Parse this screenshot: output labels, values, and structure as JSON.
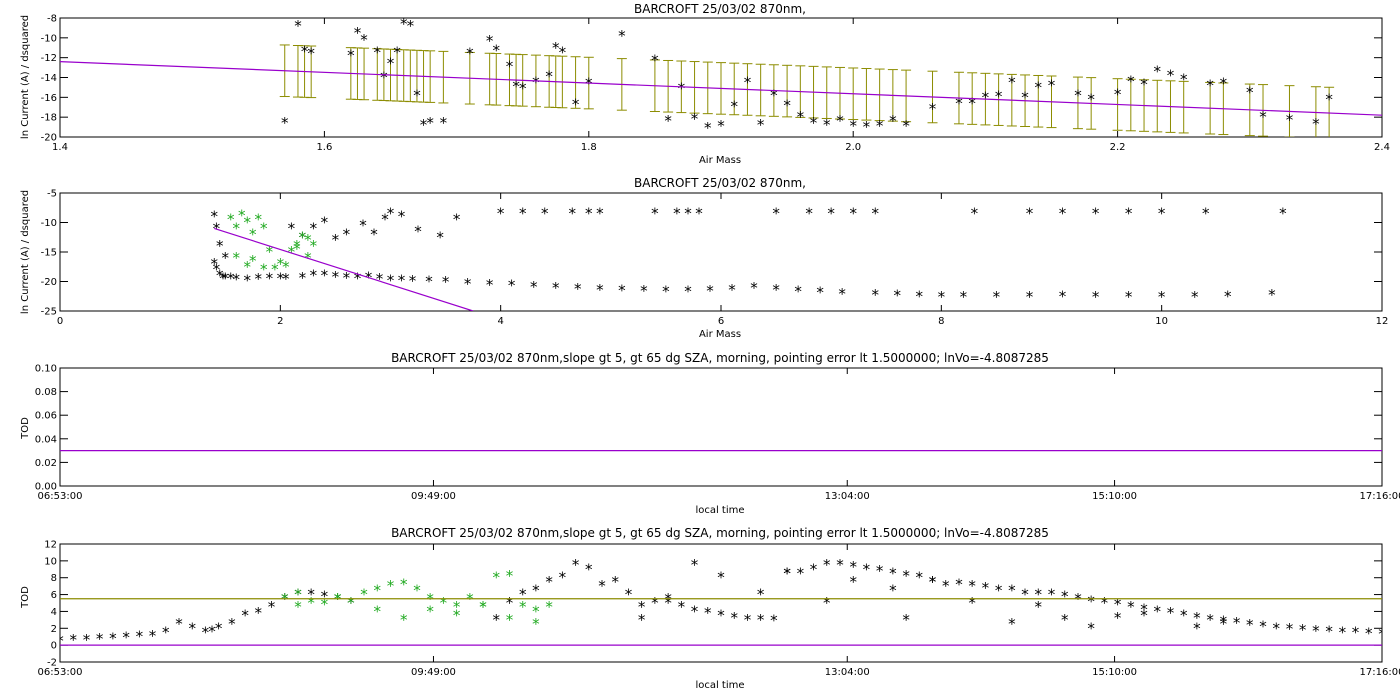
{
  "chart_data": [
    {
      "type": "scatter",
      "title": "BARCROFT 25/03/02 870nm,",
      "xlabel": "Air Mass",
      "ylabel": "ln Current (A) / dsquared",
      "xlim": [
        1.4,
        2.4
      ],
      "ylim": [
        -20,
        -8
      ],
      "xticks": [
        "1.4",
        "1.6",
        "1.8",
        "2.0",
        "2.2",
        "2.4"
      ],
      "yticks": [
        "-20",
        "-18",
        "-16",
        "-14",
        "-12",
        "-10",
        "-8"
      ],
      "colors": {
        "points": "#000000",
        "fit": "#9900cc",
        "errorbars": "#8c8c00"
      },
      "series": [
        {
          "kind": "points",
          "x": [
            1.57,
            1.58,
            1.585,
            1.59,
            1.62,
            1.625,
            1.63,
            1.64,
            1.645,
            1.65,
            1.655,
            1.66,
            1.665,
            1.67,
            1.675,
            1.68,
            1.69,
            1.71,
            1.725,
            1.73,
            1.74,
            1.745,
            1.75,
            1.76,
            1.77,
            1.775,
            1.78,
            1.79,
            1.8,
            1.825,
            1.85,
            1.86,
            1.87,
            1.88,
            1.89,
            1.9,
            1.91,
            1.92,
            1.93,
            1.94,
            1.95,
            1.96,
            1.97,
            1.98,
            1.99,
            2.0,
            2.01,
            2.02,
            2.03,
            2.04,
            2.06,
            2.08,
            2.09,
            2.1,
            2.11,
            2.12,
            2.13,
            2.14,
            2.15,
            2.17,
            2.18,
            2.2,
            2.21,
            2.22,
            2.23,
            2.24,
            2.25,
            2.27,
            2.28,
            2.3,
            2.31,
            2.33,
            2.35,
            2.36
          ],
          "y": [
            -18.6,
            -8.8,
            -11.4,
            -11.6,
            -11.8,
            -9.5,
            -10.2,
            -11.5,
            -14,
            -12.6,
            -11.5,
            -8.6,
            -8.8,
            -15.8,
            -18.8,
            -18.6,
            -18.6,
            -11.6,
            -10.3,
            -11.3,
            -12.9,
            -14.9,
            -15.1,
            -14.5,
            -13.9,
            -11,
            -11.5,
            -16.7,
            -14.6,
            -9.8,
            -12.3,
            -18.4,
            -15.1,
            -18.2,
            -19.1,
            -18.9,
            -16.9,
            -14.5,
            -18.8,
            -15.8,
            -16.8,
            -18,
            -18.6,
            -18.8,
            -18.4,
            -18.9,
            -19,
            -18.9,
            -18.4,
            -18.9,
            -17.2,
            -16.6,
            -16.6,
            -16,
            -15.9,
            -14.5,
            -16,
            -15,
            -14.8,
            -15.8,
            -16.2,
            -15.7,
            -14.4,
            -14.7,
            -13.4,
            -13.8,
            -14.2,
            -14.8,
            -14.6,
            -15.5,
            -18,
            -18.3,
            -18.7,
            -16.2
          ],
          "yerr": 2.6
        },
        {
          "kind": "fit",
          "x": [
            1.4,
            2.4
          ],
          "y": [
            -12.4,
            -17.8
          ]
        }
      ]
    },
    {
      "type": "scatter",
      "title": "BARCROFT 25/03/02 870nm,",
      "xlabel": "Air Mass",
      "ylabel": "ln Current (A) / dsquared",
      "xlim": [
        0,
        12
      ],
      "ylim": [
        -25,
        -5
      ],
      "xticks": [
        "0",
        "2",
        "4",
        "6",
        "8",
        "10",
        "12"
      ],
      "yticks": [
        "-25",
        "-20",
        "-15",
        "-10",
        "-5"
      ],
      "colors": {
        "points": "#000000",
        "selected": "#22aa22",
        "fit": "#9900cc"
      },
      "series": [
        {
          "kind": "black",
          "x": [
            1.4,
            1.42,
            1.45,
            1.48,
            1.5,
            1.55,
            1.6,
            1.7,
            1.8,
            1.9,
            2.0,
            2.05,
            2.2,
            2.3,
            2.4,
            2.5,
            2.6,
            2.7,
            2.8,
            2.9,
            3.0,
            3.1,
            3.2,
            3.35,
            3.5,
            3.7,
            3.9,
            4.1,
            4.3,
            4.5,
            4.7,
            4.9,
            5.1,
            5.3,
            5.5,
            5.7,
            5.9,
            6.1,
            6.3,
            6.5,
            6.7,
            6.9,
            7.1,
            7.4,
            7.6,
            7.8,
            8.0,
            8.2,
            8.5,
            8.8,
            9.1,
            9.4,
            9.7,
            10.0,
            10.3,
            10.6,
            11.0,
            2.1,
            2.2,
            2.3,
            2.4,
            2.5,
            2.6,
            2.75,
            2.85,
            2.95,
            3.0,
            3.1,
            3.25,
            3.45,
            3.6,
            4.0,
            4.2,
            4.4,
            4.65,
            4.8,
            4.9,
            5.4,
            5.6,
            5.7,
            5.8,
            6.5,
            6.8,
            7.0,
            7.2,
            7.4,
            8.3,
            8.8,
            9.1,
            9.4,
            9.7,
            10.0,
            10.4,
            11.1,
            1.4,
            1.42,
            1.45,
            1.5
          ],
          "y": [
            -17,
            -18,
            -19,
            -19.5,
            -19.5,
            -19.5,
            -19.7,
            -19.8,
            -19.6,
            -19.5,
            -19.5,
            -19.6,
            -19.4,
            -19,
            -19,
            -19.2,
            -19.4,
            -19.5,
            -19.3,
            -19.6,
            -19.8,
            -19.8,
            -19.9,
            -20,
            -20.1,
            -20.4,
            -20.6,
            -20.7,
            -20.9,
            -21.1,
            -21.3,
            -21.4,
            -21.5,
            -21.6,
            -21.7,
            -21.7,
            -21.6,
            -21.4,
            -21.1,
            -21.4,
            -21.7,
            -21.9,
            -22.1,
            -22.3,
            -22.4,
            -22.5,
            -22.6,
            -22.6,
            -22.6,
            -22.6,
            -22.5,
            -22.6,
            -22.6,
            -22.6,
            -22.6,
            -22.5,
            -22.3,
            -11,
            -12.5,
            -11,
            -10,
            -13,
            -12,
            -10.5,
            -12,
            -9.5,
            -8.5,
            -9,
            -11.5,
            -12.5,
            -9.5,
            -8.5,
            -8.5,
            -8.5,
            -8.5,
            -8.5,
            -8.5,
            -8.5,
            -8.5,
            -8.5,
            -8.5,
            -8.5,
            -8.5,
            -8.5,
            -8.5,
            -8.5,
            -8.5,
            -8.5,
            -8.5,
            -8.5,
            -8.5,
            -8.5,
            -8.5,
            -8.5,
            -9,
            -11,
            -14,
            -16
          ]
        },
        {
          "kind": "green",
          "x": [
            1.55,
            1.6,
            1.65,
            1.7,
            1.75,
            1.8,
            1.85,
            1.9,
            2.0,
            2.1,
            2.15,
            2.2,
            2.25,
            2.3,
            1.6,
            1.7,
            1.75,
            1.85,
            1.95,
            2.05,
            2.15,
            2.25
          ],
          "y": [
            -9.5,
            -11,
            -8.8,
            -10,
            -12,
            -9.5,
            -11,
            -15,
            -17,
            -15,
            -14,
            -12.5,
            -13,
            -14,
            -16,
            -17.5,
            -16.5,
            -18,
            -18,
            -17.5,
            -14.5,
            -16
          ]
        },
        {
          "kind": "fit",
          "x": [
            1.4,
            3.75
          ],
          "y": [
            -11,
            -25
          ]
        }
      ]
    },
    {
      "type": "line",
      "title": "BARCROFT 25/03/02 870nm,slope gt 5, gt 65 dg SZA, morning, pointing error lt 1.5000000; lnVo=-4.8087285",
      "xlabel": "local time",
      "ylabel": "TOD",
      "xlim": [
        0,
        1
      ],
      "ylim": [
        0,
        0.1
      ],
      "xticks": [
        "06:53:00",
        "09:49:00",
        "13:04:00",
        "15:10:00",
        "17:16:00"
      ],
      "xtick_pos": [
        0,
        0.2825,
        0.5955,
        0.7977,
        1
      ],
      "yticks": [
        "0.00",
        "0.02",
        "0.04",
        "0.06",
        "0.08",
        "0.10"
      ],
      "colors": {
        "line": "#9900cc"
      },
      "series": [
        {
          "kind": "hline",
          "y": 0.03
        }
      ]
    },
    {
      "type": "scatter",
      "title": "BARCROFT 25/03/02 870nm,slope gt 5, gt 65 dg SZA, morning, pointing error lt 1.5000000; lnVo=-4.8087285",
      "xlabel": "local time",
      "ylabel": "TOD",
      "xlim": [
        0,
        1
      ],
      "ylim": [
        -2,
        12
      ],
      "xticks": [
        "06:53:00",
        "09:49:00",
        "13:04:00",
        "15:10:00",
        "17:16:00"
      ],
      "xtick_pos": [
        0,
        0.2825,
        0.5955,
        0.7977,
        1
      ],
      "yticks": [
        "-2",
        "0",
        "2",
        "4",
        "6",
        "8",
        "10",
        "12"
      ],
      "colors": {
        "points": "#000000",
        "selected": "#22aa22",
        "hline_top": "#8c8c00",
        "hline_zero": "#9900cc"
      },
      "series": [
        {
          "kind": "black",
          "x": [
            0.0,
            0.01,
            0.02,
            0.03,
            0.04,
            0.05,
            0.06,
            0.07,
            0.08,
            0.09,
            0.1,
            0.11,
            0.115,
            0.12,
            0.13,
            0.14,
            0.15,
            0.16,
            0.17,
            0.18,
            0.19,
            0.2,
            0.21,
            0.22,
            0.33,
            0.34,
            0.35,
            0.36,
            0.37,
            0.38,
            0.39,
            0.4,
            0.41,
            0.42,
            0.43,
            0.44,
            0.45,
            0.46,
            0.47,
            0.48,
            0.49,
            0.5,
            0.51,
            0.52,
            0.53,
            0.54,
            0.55,
            0.56,
            0.57,
            0.58,
            0.59,
            0.6,
            0.61,
            0.62,
            0.63,
            0.64,
            0.65,
            0.66,
            0.67,
            0.68,
            0.69,
            0.7,
            0.71,
            0.72,
            0.73,
            0.74,
            0.75,
            0.76,
            0.77,
            0.78,
            0.79,
            0.8,
            0.81,
            0.82,
            0.83,
            0.84,
            0.85,
            0.86,
            0.87,
            0.88,
            0.89,
            0.9,
            0.91,
            0.92,
            0.93,
            0.94,
            0.95,
            0.96,
            0.97,
            0.98,
            0.99,
            1.0,
            0.44,
            0.46,
            0.48,
            0.5,
            0.53,
            0.55,
            0.58,
            0.6,
            0.63,
            0.64,
            0.66,
            0.69,
            0.72,
            0.74,
            0.76,
            0.78,
            0.8,
            0.82,
            0.86,
            0.88
          ],
          "y": [
            0.5,
            0.6,
            0.6,
            0.7,
            0.8,
            0.9,
            1.0,
            1.1,
            1.5,
            2.5,
            2.0,
            1.5,
            1.6,
            2.0,
            2.5,
            3.5,
            3.8,
            4.5,
            5.5,
            6.0,
            6.0,
            5.8,
            5.5,
            5.0,
            3.0,
            5.0,
            6.0,
            6.5,
            7.5,
            8.0,
            9.5,
            9.0,
            7.0,
            7.5,
            6.0,
            4.5,
            5.0,
            5.0,
            4.5,
            4.0,
            3.8,
            3.5,
            3.2,
            3.0,
            3.0,
            2.9,
            8.5,
            8.5,
            9.0,
            9.5,
            9.5,
            9.3,
            9.0,
            8.8,
            8.5,
            8.2,
            8.0,
            7.5,
            7.0,
            7.2,
            7.0,
            6.8,
            6.5,
            6.5,
            6.0,
            6.0,
            6.0,
            5.8,
            5.5,
            5.2,
            5.0,
            4.8,
            4.5,
            4.2,
            4.0,
            3.8,
            3.5,
            3.2,
            3.0,
            2.8,
            2.6,
            2.4,
            2.2,
            2.0,
            1.9,
            1.8,
            1.7,
            1.6,
            1.5,
            1.5,
            1.4,
            1.3,
            3.0,
            5.5,
            9.5,
            8.0,
            6.0,
            8.5,
            5.0,
            7.5,
            6.5,
            3.0,
            7.5,
            5.0,
            2.5,
            4.5,
            3.0,
            2.0,
            3.2,
            3.5,
            2.0,
            2.5
          ]
        },
        {
          "kind": "green",
          "x": [
            0.17,
            0.18,
            0.19,
            0.2,
            0.21,
            0.22,
            0.23,
            0.24,
            0.25,
            0.26,
            0.27,
            0.28,
            0.29,
            0.3,
            0.31,
            0.32,
            0.33,
            0.34,
            0.35,
            0.36,
            0.37,
            0.18,
            0.21,
            0.24,
            0.26,
            0.28,
            0.3,
            0.32,
            0.34,
            0.36
          ],
          "y": [
            5.5,
            6.0,
            5.0,
            4.8,
            5.5,
            5.0,
            6.0,
            6.5,
            7.0,
            7.2,
            6.5,
            5.5,
            5.0,
            4.5,
            5.5,
            4.5,
            8.0,
            8.2,
            4.5,
            4.0,
            4.5,
            4.5,
            5.5,
            4.0,
            3.0,
            4.0,
            3.5,
            4.5,
            3.0,
            2.5
          ]
        },
        {
          "kind": "hline_top",
          "y": 5.5
        },
        {
          "kind": "hline_zero",
          "y": 0
        }
      ]
    }
  ]
}
